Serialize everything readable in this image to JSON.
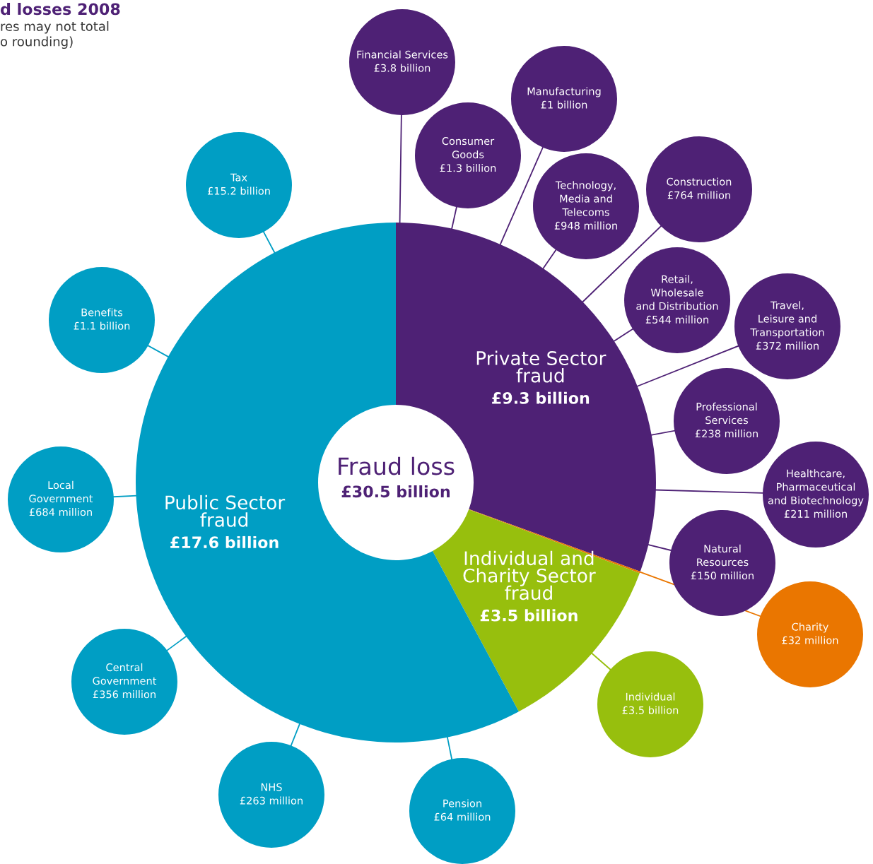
{
  "chart_data": [
    {
      "type": "donut",
      "annotations": [
        "Fraud loss",
        "£30.5 billion"
      ],
      "categories": [
        "Private Sector\nfraud",
        null,
        "Individual and\nCharity Sector\nfraud",
        "Public Sector\nfraud"
      ],
      "values": [
        9.3,
        0.032,
        3.5,
        17.6
      ],
      "value_labels": [
        "£9.3 billion",
        null,
        "£3.5 billion",
        "£17.6 billion"
      ],
      "colors": [
        "#4e2175",
        "#ea7600",
        "#97bf0d",
        "#009ec4"
      ]
    },
    {
      "type": "other",
      "title": "d losses 2008",
      "subtitle": "res may not total\no rounding)",
      "categories": [
        "Financial Services",
        "Manufacturing",
        "Consumer\nGoods",
        "Technology,\nMedia and\nTelecoms",
        "Construction",
        "Retail,\nWholesale\nand Distribution",
        "Travel,\nLeisure and\nTransportation",
        "Professional\nServices",
        "Healthcare,\nPharmaceutical\nand Biotechnology",
        "Natural\nResources",
        "Charity",
        "Individual",
        "Pension",
        "NHS",
        "Central\nGovernment",
        "Local\nGovernment",
        "Benefits",
        "Tax"
      ],
      "value_labels": [
        "£3.8 billion",
        "£1 billion",
        "£1.3 billion",
        "£948 million",
        "£764 million",
        "£544 million",
        "£372 million",
        "£238 million",
        "£211 million",
        "£150 million",
        "£32 million",
        "£3.5 billion",
        "£64 million",
        "£263 million",
        "£356 million",
        "£684 million",
        "£1.1 billion",
        "£15.2 billion"
      ],
      "colors": [
        "#4e2175",
        "#4e2175",
        "#4e2175",
        "#4e2175",
        "#4e2175",
        "#4e2175",
        "#4e2175",
        "#4e2175",
        "#4e2175",
        "#4e2175",
        "#ea7600",
        "#97bf0d",
        "#009ec4",
        "#009ec4",
        "#009ec4",
        "#009ec4",
        "#009ec4",
        "#009ec4"
      ]
    }
  ]
}
